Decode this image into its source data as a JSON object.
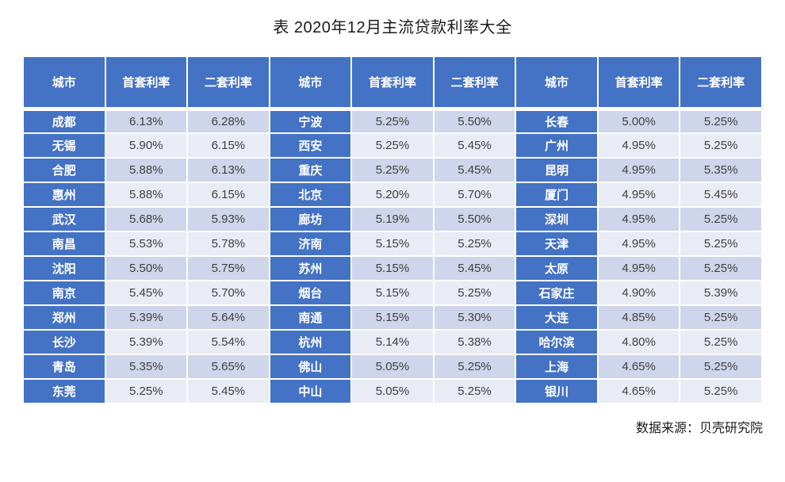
{
  "colors": {
    "header_bg": "#4472C4",
    "city_bg": "#4472C4",
    "row_odd_bg": "#CFD5EA",
    "row_even_bg": "#E9EBF5",
    "header_text": "#FFFFFF",
    "rate_text": "#404040"
  },
  "chart_data": {
    "type": "table",
    "title": "表 2020年12月主流贷款利率大全",
    "source": "数据来源：贝壳研究院",
    "headers": [
      "城市",
      "首套利率",
      "二套利率",
      "城市",
      "首套利率",
      "二套利率",
      "城市",
      "首套利率",
      "二套利率"
    ],
    "rows": [
      [
        "成都",
        "6.13%",
        "6.28%",
        "宁波",
        "5.25%",
        "5.50%",
        "长春",
        "5.00%",
        "5.25%"
      ],
      [
        "无锡",
        "5.90%",
        "6.15%",
        "西安",
        "5.25%",
        "5.45%",
        "广州",
        "4.95%",
        "5.25%"
      ],
      [
        "合肥",
        "5.88%",
        "6.13%",
        "重庆",
        "5.25%",
        "5.45%",
        "昆明",
        "4.95%",
        "5.35%"
      ],
      [
        "惠州",
        "5.88%",
        "6.15%",
        "北京",
        "5.20%",
        "5.70%",
        "厦门",
        "4.95%",
        "5.45%"
      ],
      [
        "武汉",
        "5.68%",
        "5.93%",
        "廊坊",
        "5.19%",
        "5.50%",
        "深圳",
        "4.95%",
        "5.25%"
      ],
      [
        "南昌",
        "5.53%",
        "5.78%",
        "济南",
        "5.15%",
        "5.25%",
        "天津",
        "4.95%",
        "5.25%"
      ],
      [
        "沈阳",
        "5.50%",
        "5.75%",
        "苏州",
        "5.15%",
        "5.45%",
        "太原",
        "4.95%",
        "5.25%"
      ],
      [
        "南京",
        "5.45%",
        "5.70%",
        "烟台",
        "5.15%",
        "5.25%",
        "石家庄",
        "4.90%",
        "5.39%"
      ],
      [
        "郑州",
        "5.39%",
        "5.64%",
        "南通",
        "5.15%",
        "5.30%",
        "大连",
        "4.85%",
        "5.25%"
      ],
      [
        "长沙",
        "5.39%",
        "5.54%",
        "杭州",
        "5.14%",
        "5.38%",
        "哈尔滨",
        "4.80%",
        "5.25%"
      ],
      [
        "青岛",
        "5.35%",
        "5.65%",
        "佛山",
        "5.05%",
        "5.25%",
        "上海",
        "4.65%",
        "5.25%"
      ],
      [
        "东莞",
        "5.25%",
        "5.45%",
        "中山",
        "5.05%",
        "5.25%",
        "银川",
        "4.65%",
        "5.25%"
      ]
    ]
  }
}
